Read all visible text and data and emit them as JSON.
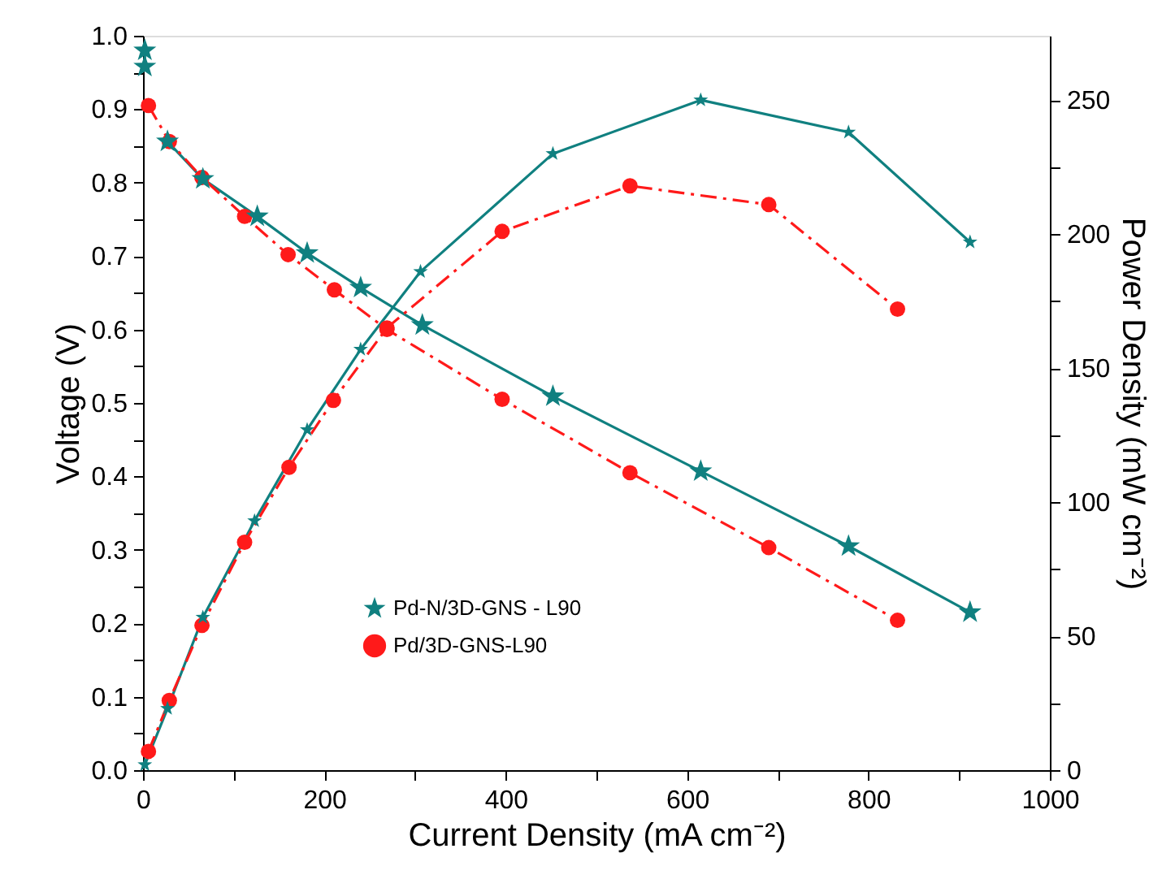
{
  "chart_data": {
    "type": "line",
    "xlabel": "Current Density (mA cm⁻²)",
    "ylabel": "Voltage (V)",
    "y2label": "Power Density (mW cm⁻²)",
    "xlim": [
      0,
      1000
    ],
    "xticks": [
      0,
      {
        "value": 100,
        "label": null
      },
      200,
      {
        "value": 300,
        "label": null
      },
      400,
      {
        "value": 500,
        "label": null
      },
      600,
      {
        "value": 700,
        "label": null
      },
      800,
      {
        "value": 900,
        "label": null
      },
      1000
    ],
    "ylim": [
      0,
      1.0
    ],
    "yticks": [
      {
        "value": 0,
        "label": "0.0"
      },
      {
        "value": 0.05,
        "label": null
      },
      0.1,
      {
        "value": 0.15,
        "label": null
      },
      0.2,
      {
        "value": 0.25,
        "label": null
      },
      0.3,
      {
        "value": 0.35,
        "label": null
      },
      0.4,
      {
        "value": 0.45,
        "label": null
      },
      0.5,
      {
        "value": 0.55,
        "label": null
      },
      0.6,
      {
        "value": 0.65,
        "label": null
      },
      0.7,
      {
        "value": 0.75,
        "label": null
      },
      0.8,
      {
        "value": 0.85,
        "label": null
      },
      0.9,
      {
        "value": 0.95,
        "label": null
      },
      {
        "value": 1,
        "label": "1.0"
      }
    ],
    "y2lim": [
      0,
      274
    ],
    "y2ticks": [
      0,
      {
        "value": 25,
        "label": null
      },
      50,
      {
        "value": 75,
        "label": null
      },
      100,
      {
        "value": 125,
        "label": null
      },
      150,
      {
        "value": 175,
        "label": null
      },
      200,
      {
        "value": 225,
        "label": null
      },
      250
    ],
    "grid": false,
    "legend": "bottom",
    "series": [
      {
        "name": "Pd-N/3D-GNS - L90",
        "color": "#108080",
        "marker": "star",
        "line_style": "solid",
        "x": [
          2,
          2,
          5,
          27,
          66,
          126,
          181,
          240,
          308,
          452,
          615,
          778,
          912
        ],
        "values": [
          0.98,
          0.958,
          null,
          0.856,
          0.805,
          0.754,
          0.704,
          0.657,
          0.606,
          0.509,
          0.407,
          0.305,
          0.215
        ]
      },
      {
        "name": "Pd/3D-GNS-L90",
        "color": "#ff1a1a",
        "marker": "circle",
        "line_style": "dashed",
        "x": [
          6,
          29,
          65,
          112,
          160,
          211,
          269,
          396,
          537,
          690,
          832
        ],
        "values": [
          0.905,
          0.856,
          0.807,
          0.754,
          0.702,
          0.654,
          0.6,
          0.505,
          0.405,
          0.303,
          0.204
        ]
      },
      {
        "color": "#108080",
        "marker": "star",
        "line_style": "solid",
        "axis": "y2",
        "x": [
          2,
          27,
          66,
          123,
          181,
          240,
          306,
          452,
          615,
          778,
          912
        ],
        "values": [
          2,
          23,
          57,
          93,
          127,
          157,
          186,
          230,
          250,
          238,
          197
        ]
      },
      {
        "color": "#ff1a1a",
        "marker": "circle",
        "line_style": "dashed",
        "axis": "y2",
        "x": [
          6,
          29,
          65,
          112,
          161,
          210,
          269,
          396,
          537,
          690,
          832
        ],
        "values": [
          7,
          26,
          54,
          85,
          113,
          138,
          165,
          201,
          218,
          211,
          172
        ]
      }
    ]
  }
}
